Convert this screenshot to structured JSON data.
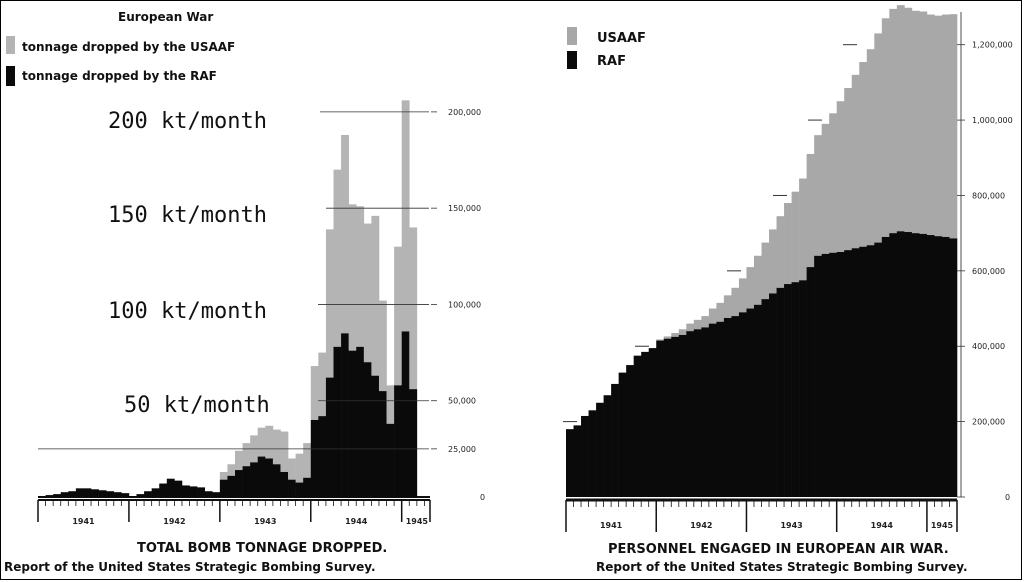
{
  "chart_data": [
    {
      "type": "bar",
      "title": "TOTAL BOMB TONNAGE DROPPED.",
      "subtitle": "Report of the United States Strategic Bombing Survey.",
      "legend": {
        "heading": "European War",
        "items": [
          {
            "label": "tonnage dropped by the USAAF",
            "color": "#b4b4b4"
          },
          {
            "label": "tonnage dropped by the RAF",
            "color": "#0a0a0a"
          }
        ],
        "placement": "top-left"
      },
      "annotations": [
        "200 kt/month",
        "150 kt/month",
        "100 kt/month",
        "50 kt/month"
      ],
      "y_ticks": [
        {
          "value": 200000,
          "label": "200,000"
        },
        {
          "value": 150000,
          "label": "150,000"
        },
        {
          "value": 100000,
          "label": "100,000"
        },
        {
          "value": 50000,
          "label": "50,000"
        },
        {
          "value": 25000,
          "label": "25,000"
        },
        {
          "value": 0,
          "label": "0"
        }
      ],
      "year_labels": [
        "1941",
        "1942",
        "1943",
        "1944",
        "1945"
      ],
      "months_per_year": [
        12,
        12,
        12,
        12,
        4
      ],
      "ylim": [
        0,
        215000
      ],
      "series": [
        {
          "name": "tonnage dropped by the RAF",
          "values": [
            500,
            1000,
            1500,
            2500,
            3000,
            4500,
            4500,
            4000,
            3500,
            3000,
            2500,
            2000,
            500,
            1500,
            3000,
            4500,
            7000,
            9500,
            8500,
            6000,
            5500,
            5000,
            3000,
            2500,
            9000,
            11000,
            14000,
            16000,
            18000,
            21000,
            20000,
            17000,
            13000,
            9000,
            7500,
            10000,
            40000,
            42000,
            62000,
            78000,
            85000,
            76000,
            78000,
            70000,
            63000,
            55000,
            38000,
            58000,
            86000,
            56000,
            0,
            0
          ]
        },
        {
          "name": "tonnage dropped by the USAAF",
          "values": [
            0,
            0,
            0,
            0,
            0,
            0,
            0,
            0,
            0,
            0,
            0,
            0,
            0,
            0,
            0,
            0,
            0,
            0,
            0,
            0,
            0,
            0,
            0,
            0,
            4000,
            6000,
            10000,
            12000,
            14000,
            15000,
            17000,
            18000,
            21000,
            11000,
            15000,
            18000,
            28000,
            33000,
            77000,
            92000,
            103000,
            76000,
            73000,
            72000,
            83000,
            47000,
            20000,
            72000,
            120000,
            84000,
            0,
            0
          ]
        }
      ]
    },
    {
      "type": "area",
      "title": "PERSONNEL ENGAGED IN EUROPEAN AIR WAR.",
      "subtitle": "Report of the United States Strategic Bombing Survey.",
      "legend": {
        "items": [
          {
            "label": "USAAF",
            "color": "#a8a8a8"
          },
          {
            "label": "RAF",
            "color": "#0a0a0a"
          }
        ],
        "placement": "top-left"
      },
      "y_ticks": [
        {
          "value": 1200000,
          "label": "1,200,000"
        },
        {
          "value": 1000000,
          "label": "1,000,000"
        },
        {
          "value": 800000,
          "label": "800,000"
        },
        {
          "value": 600000,
          "label": "600,000"
        },
        {
          "value": 400000,
          "label": "400,000"
        },
        {
          "value": 200000,
          "label": "200,000"
        },
        {
          "value": 0,
          "label": "0"
        }
      ],
      "year_labels": [
        "1941",
        "1942",
        "1943",
        "1944",
        "1945"
      ],
      "months_per_year": [
        12,
        12,
        12,
        12,
        4
      ],
      "ylim": [
        0,
        1300000
      ],
      "series": [
        {
          "name": "RAF",
          "values": [
            180000,
            190000,
            215000,
            230000,
            250000,
            270000,
            300000,
            330000,
            350000,
            375000,
            385000,
            395000,
            415000,
            420000,
            425000,
            430000,
            440000,
            445000,
            450000,
            460000,
            465000,
            475000,
            480000,
            490000,
            500000,
            510000,
            525000,
            540000,
            555000,
            565000,
            570000,
            575000,
            610000,
            640000,
            645000,
            648000,
            650000,
            655000,
            660000,
            664000,
            668000,
            675000,
            690000,
            700000,
            705000,
            703000,
            700000,
            698000,
            695000,
            692000,
            690000,
            686000
          ]
        },
        {
          "name": "USAAF",
          "values": [
            0,
            0,
            0,
            0,
            0,
            0,
            0,
            0,
            0,
            0,
            0,
            0,
            3000,
            6000,
            10000,
            15000,
            20000,
            25000,
            30000,
            40000,
            50000,
            60000,
            75000,
            90000,
            110000,
            130000,
            150000,
            170000,
            190000,
            215000,
            240000,
            270000,
            300000,
            320000,
            345000,
            370000,
            400000,
            430000,
            460000,
            490000,
            520000,
            555000,
            580000,
            595000,
            600000,
            595000,
            590000,
            590000,
            585000,
            585000,
            590000,
            595000
          ]
        }
      ]
    }
  ]
}
